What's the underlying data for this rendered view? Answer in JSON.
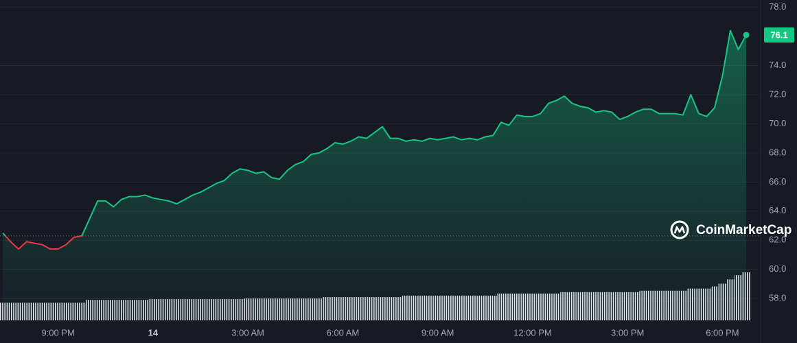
{
  "chart_data": {
    "type": "line",
    "categories": [
      null,
      null,
      null,
      null,
      null,
      null,
      null,
      "9:00 PM",
      null,
      null,
      null,
      null,
      null,
      null,
      null,
      null,
      null,
      null,
      null,
      "14",
      null,
      null,
      null,
      null,
      null,
      null,
      null,
      null,
      null,
      null,
      null,
      "3:00 AM",
      null,
      null,
      null,
      null,
      null,
      null,
      null,
      null,
      null,
      null,
      null,
      "6:00 AM",
      null,
      null,
      null,
      null,
      null,
      null,
      null,
      null,
      null,
      null,
      null,
      "9:00 AM",
      null,
      null,
      null,
      null,
      null,
      null,
      null,
      null,
      null,
      null,
      null,
      "12:00 PM",
      null,
      null,
      null,
      null,
      null,
      null,
      null,
      null,
      null,
      null,
      null,
      "3:00 PM",
      null,
      null,
      null,
      null,
      null,
      null,
      null,
      null,
      null,
      null,
      null,
      "6:00 PM",
      null,
      null,
      null
    ],
    "series": [
      {
        "color": "#16c784",
        "below_color": "#ea3943",
        "values": [
          62.5,
          61.9,
          61.4,
          61.9,
          61.8,
          61.7,
          61.4,
          61.4,
          61.7,
          62.2,
          62.3,
          63.5,
          64.7,
          64.7,
          64.3,
          64.8,
          65.0,
          65.0,
          65.1,
          64.9,
          64.8,
          64.7,
          64.5,
          64.8,
          65.1,
          65.3,
          65.6,
          65.9,
          66.1,
          66.6,
          66.9,
          66.8,
          66.6,
          66.7,
          66.3,
          66.2,
          66.8,
          67.2,
          67.4,
          67.9,
          68.0,
          68.3,
          68.7,
          68.6,
          68.8,
          69.1,
          69.0,
          69.4,
          69.8,
          69.0,
          69.0,
          68.8,
          68.9,
          68.8,
          69.0,
          68.9,
          69.0,
          69.1,
          68.9,
          69.0,
          68.9,
          69.1,
          69.2,
          70.1,
          69.9,
          70.6,
          70.5,
          70.5,
          70.7,
          71.4,
          71.6,
          71.9,
          71.4,
          71.2,
          71.1,
          70.8,
          70.9,
          70.8,
          70.3,
          70.5,
          70.8,
          71.0,
          71.0,
          70.7,
          70.7,
          70.7,
          70.6,
          72.0,
          70.7,
          70.5,
          71.1,
          73.3,
          76.4,
          75.1,
          76.1
        ]
      }
    ],
    "volume": [
      25,
      25,
      25,
      25,
      25,
      25,
      25,
      25,
      25,
      25,
      25,
      29,
      29,
      29,
      29,
      29,
      29,
      29,
      29,
      30,
      30,
      30,
      30,
      30,
      30,
      30,
      30,
      30,
      30,
      30,
      30,
      31,
      31,
      31,
      31,
      31,
      31,
      31,
      31,
      31,
      31,
      33,
      33,
      33,
      33,
      33,
      33,
      33,
      33,
      33,
      33,
      35,
      35,
      35,
      35,
      35,
      35,
      35,
      35,
      35,
      35,
      35,
      35,
      38,
      38,
      38,
      38,
      38,
      38,
      38,
      38,
      40,
      40,
      40,
      40,
      40,
      40,
      40,
      40,
      40,
      40,
      42,
      42,
      42,
      42,
      42,
      42,
      45,
      45,
      45,
      48,
      52,
      58,
      64,
      68
    ],
    "baseline": 62.3,
    "ylim": [
      56.5,
      78.5
    ],
    "yticks": [
      {
        "value": 58,
        "label": "58.0"
      },
      {
        "value": 60,
        "label": "60.0"
      },
      {
        "value": 62,
        "label": "62.0"
      },
      {
        "value": 64,
        "label": "64.0"
      },
      {
        "value": 66,
        "label": "66.0"
      },
      {
        "value": 68,
        "label": "68.0"
      },
      {
        "value": 70,
        "label": "70.0"
      },
      {
        "value": 72,
        "label": "72.0"
      },
      {
        "value": 74,
        "label": "74.0"
      },
      {
        "value": 78,
        "label": "78.0"
      }
    ],
    "grid": true,
    "watermark": "CoinMarketCap"
  }
}
